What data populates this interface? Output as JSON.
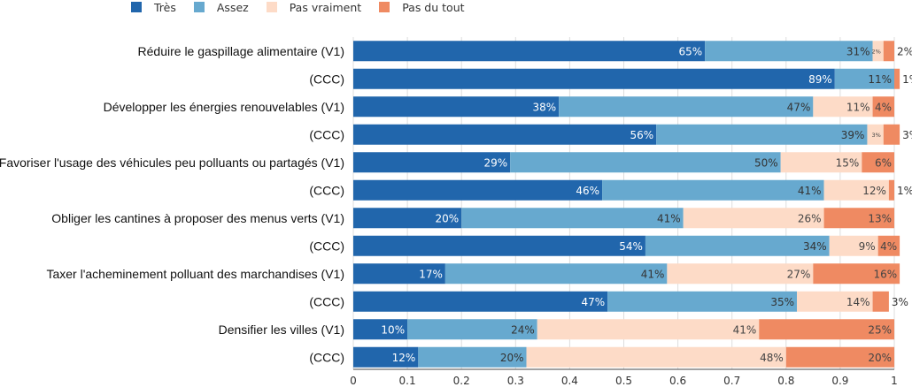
{
  "chart_data": {
    "type": "bar",
    "orientation": "horizontal",
    "stacked": true,
    "title": "",
    "xlabel": "",
    "ylabel": "",
    "xlim": [
      0,
      1
    ],
    "xticks": [
      "0",
      "0.1",
      "0.2",
      "0.3",
      "0.4",
      "0.5",
      "0.6",
      "0.7",
      "0.8",
      "0.9",
      "1"
    ],
    "grid": true,
    "legend_position": "top-left",
    "categories": [
      "Réduire le gaspillage alimentaire (V1)",
      "(CCC)",
      "Développer les énergies renouvelables (V1)",
      "(CCC)",
      "Favoriser l'usage des véhicules peu polluants ou partagés (V1)",
      "(CCC)",
      "Obliger les cantines à proposer des menus verts (V1)",
      "(CCC)",
      "Taxer l'acheminement polluant des marchandises (V1)",
      "(CCC)",
      "Densifier les villes (V1)",
      "(CCC)"
    ],
    "series": [
      {
        "name": "Très",
        "color": "#2166ac",
        "values": [
          0.65,
          0.89,
          0.38,
          0.56,
          0.29,
          0.46,
          0.2,
          0.54,
          0.17,
          0.47,
          0.1,
          0.12
        ],
        "labels": [
          "65%",
          "89%",
          "38%",
          "56%",
          "29%",
          "46%",
          "20%",
          "54%",
          "17%",
          "47%",
          "10%",
          "12%"
        ]
      },
      {
        "name": "Assez",
        "color": "#67a9cf",
        "values": [
          0.31,
          0.11,
          0.47,
          0.39,
          0.5,
          0.41,
          0.41,
          0.34,
          0.41,
          0.35,
          0.24,
          0.2
        ],
        "labels": [
          "31%",
          "11%",
          "47%",
          "39%",
          "50%",
          "41%",
          "41%",
          "34%",
          "41%",
          "35%",
          "24%",
          "20%"
        ]
      },
      {
        "name": "Pas vraiment",
        "color": "#fddbc7",
        "values": [
          0.02,
          0.0,
          0.11,
          0.03,
          0.15,
          0.12,
          0.26,
          0.09,
          0.27,
          0.14,
          0.41,
          0.48
        ],
        "labels": [
          "2%",
          "",
          "11%",
          "3%",
          "15%",
          "12%",
          "26%",
          "9%",
          "27%",
          "14%",
          "41%",
          "48%"
        ]
      },
      {
        "name": "Pas du tout",
        "color": "#ef8a62",
        "values": [
          0.02,
          0.01,
          0.04,
          0.03,
          0.06,
          0.01,
          0.13,
          0.04,
          0.16,
          0.03,
          0.25,
          0.2
        ],
        "labels": [
          "2%",
          "1%",
          "4%",
          "3%",
          "6%",
          "1%",
          "13%",
          "4%",
          "16%",
          "3%",
          "25%",
          "20%"
        ]
      }
    ]
  }
}
